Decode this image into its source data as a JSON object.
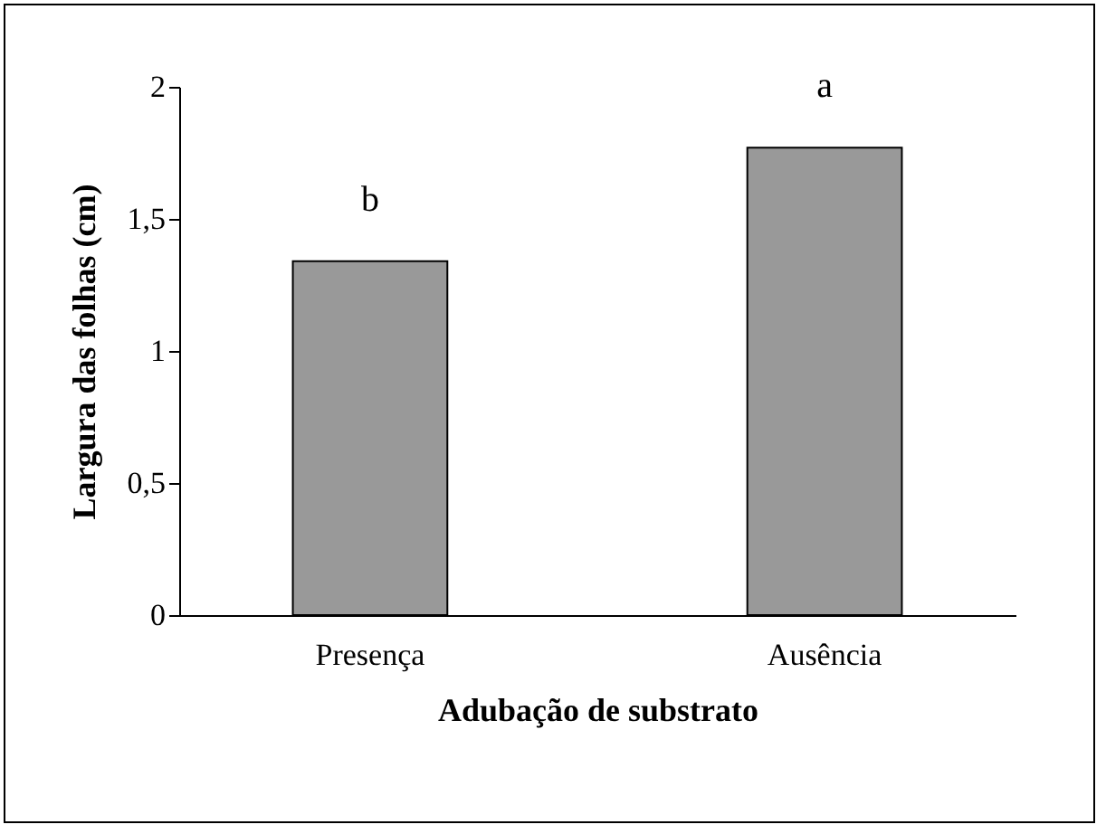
{
  "chart_data": {
    "type": "bar",
    "xlabel": "Adubação de  substrato",
    "ylabel": "Largura das folhas (cm)",
    "categories": [
      "Presença",
      "Ausência"
    ],
    "values": [
      1.34,
      1.77
    ],
    "color": "#999999",
    "ylim": [
      0,
      2
    ],
    "yticks": [
      0,
      {
        "value": 0.5,
        "label": "0,5"
      },
      1,
      {
        "value": 1.5,
        "label": "1,5"
      },
      2
    ],
    "annotations": [
      {
        "text": "b",
        "x": "Presença",
        "y": 1.34
      },
      {
        "text": "a",
        "x": "Ausência",
        "y": 1.77
      }
    ]
  }
}
